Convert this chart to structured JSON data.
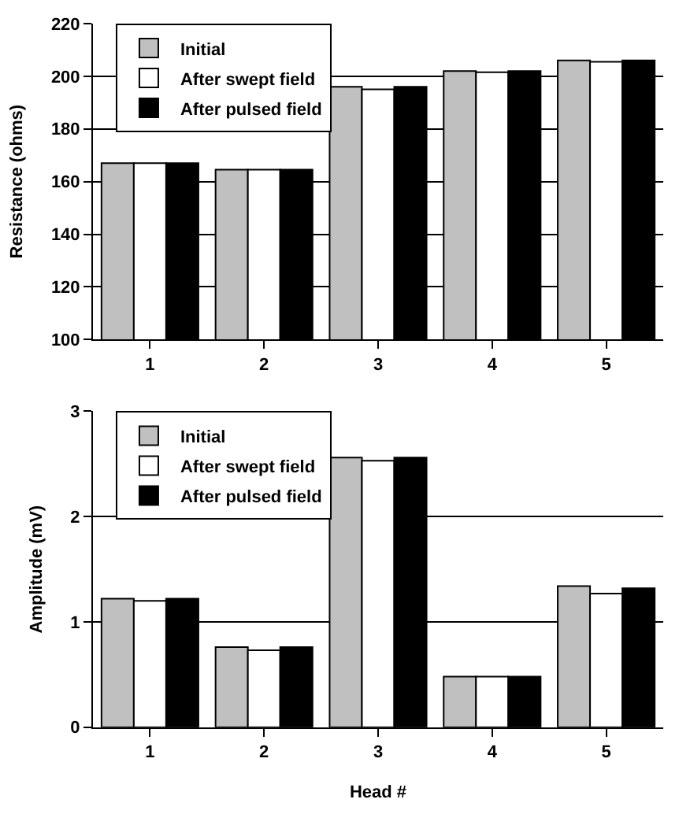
{
  "chart_data": [
    {
      "type": "bar",
      "ylabel": "Resistance (ohms)",
      "categories": [
        "1",
        "2",
        "3",
        "4",
        "5"
      ],
      "ylim": [
        100,
        220
      ],
      "yticks": [
        100,
        120,
        140,
        160,
        180,
        200,
        220
      ],
      "grid": "y",
      "legend": "top left",
      "series": [
        {
          "name": "Initial",
          "color": "#c0c0c0",
          "values": [
            167,
            164.5,
            196,
            202,
            206
          ]
        },
        {
          "name": "After swept field",
          "color": "#ffffff",
          "values": [
            167,
            164.5,
            195,
            201.5,
            205.5
          ]
        },
        {
          "name": "After pulsed field",
          "color": "#000000",
          "values": [
            167,
            164.5,
            196,
            202,
            206
          ]
        }
      ]
    },
    {
      "type": "bar",
      "xlabel": "Head #",
      "ylabel": "Amplitude (mV)",
      "categories": [
        "1",
        "2",
        "3",
        "4",
        "5"
      ],
      "ylim": [
        0,
        3
      ],
      "yticks": [
        0,
        1,
        2,
        3
      ],
      "grid": "y",
      "legend": "top left",
      "series": [
        {
          "name": "Initial",
          "color": "#c0c0c0",
          "values": [
            1.22,
            0.76,
            2.56,
            0.48,
            1.34
          ]
        },
        {
          "name": "After swept field",
          "color": "#ffffff",
          "values": [
            1.2,
            0.73,
            2.53,
            0.48,
            1.27
          ]
        },
        {
          "name": "After pulsed field",
          "color": "#000000",
          "values": [
            1.22,
            0.76,
            2.56,
            0.48,
            1.32
          ]
        }
      ]
    }
  ]
}
